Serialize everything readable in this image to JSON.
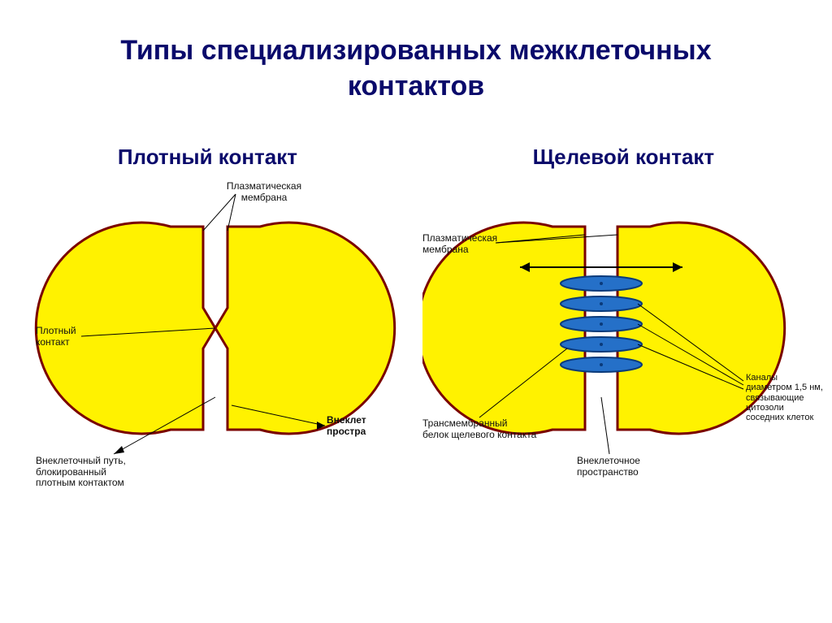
{
  "title_line1": "Типы специализированных межклеточных",
  "title_line2": "контактов",
  "title_color": "#0a0a6b",
  "title_fontsize": 34,
  "subtitle_left": "Плотный контакт",
  "subtitle_right": "Щелевой контакт",
  "subtitle_color": "#0a0a6b",
  "subtitle_fontsize": 26,
  "cell_fill": "#fff200",
  "cell_stroke": "#7a0000",
  "cell_stroke_width": 3,
  "channel_fill": "#2570c8",
  "channel_stroke": "#0a3a7a",
  "arrow_color": "#000000",
  "leader_color": "#000000",
  "left": {
    "l_membrane": "Плазматическая\nмембрана",
    "l_tight": "Плотный\nконтакт",
    "l_path": "Внеклеточный путь,\nблокированный\nплотным контактом",
    "l_space": "Внеклет\nпростра"
  },
  "right": {
    "l_membrane": "Плазматическая\nмембрана",
    "l_trans": "Трансмембранный\nбелок щелевого контакта",
    "l_extra": "Внеклеточное\nпространство",
    "l_channels": "Каналы\nдиаметром 1,5 нм,\nсвязывающие\nцитозоли\nсоседних клеток"
  }
}
